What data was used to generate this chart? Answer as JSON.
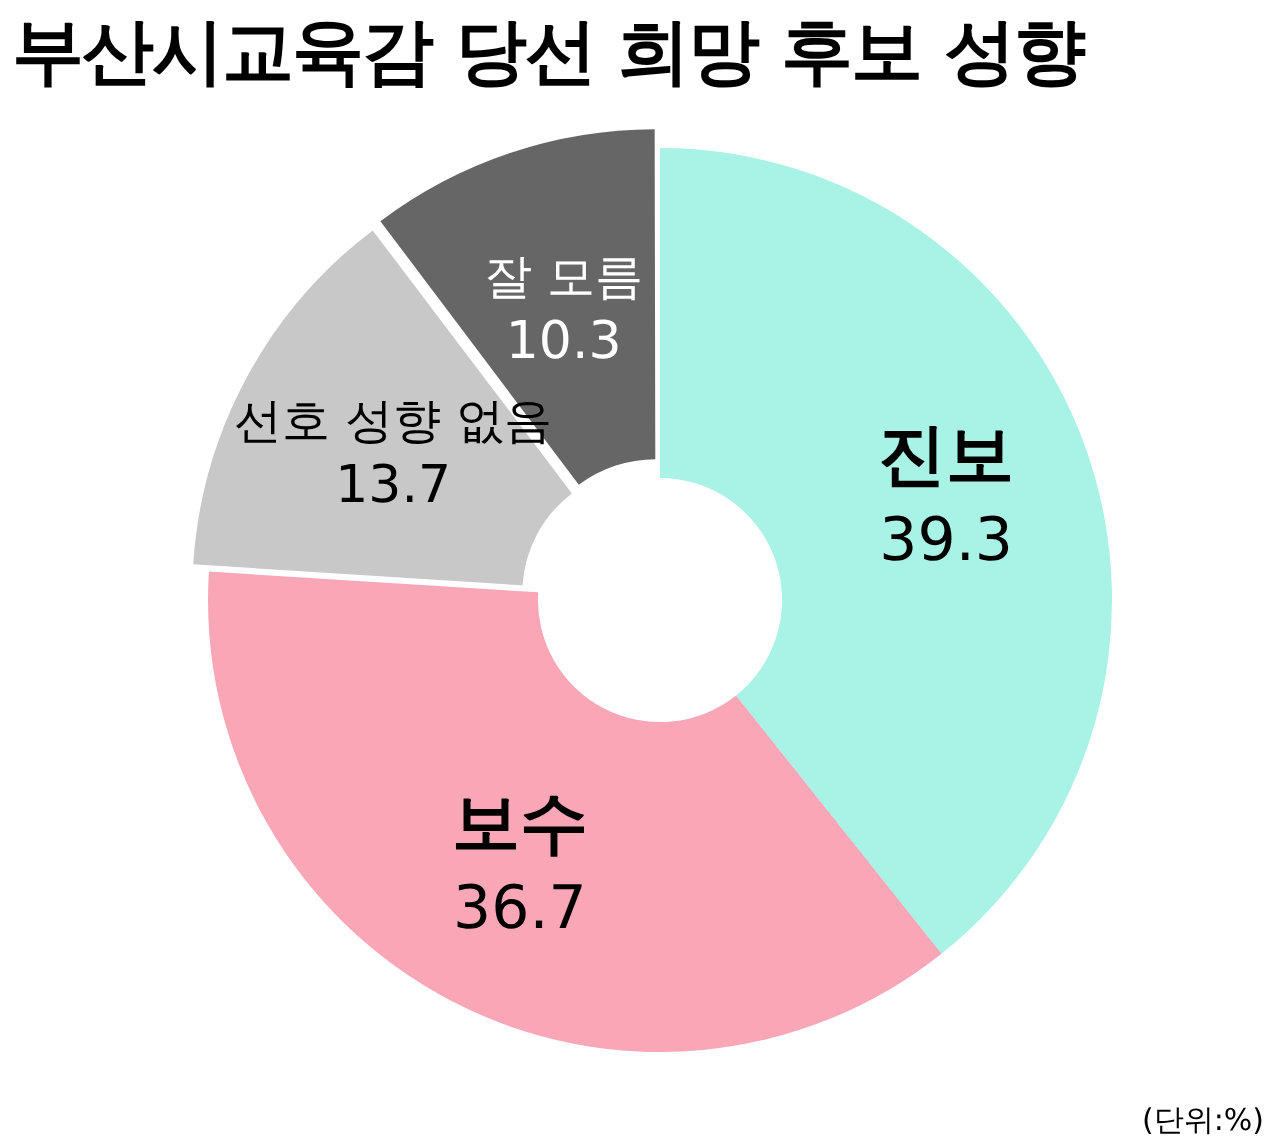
{
  "chart_data": {
    "type": "donut",
    "title": "부산시교육감 당선 희망 후보 성향",
    "categories": [
      "진보",
      "보수",
      "선호 성향 없음",
      "잘 모름"
    ],
    "values": [
      39.3,
      36.7,
      13.7,
      10.3
    ],
    "colors": [
      "#a8f2e6",
      "#f9a7b7",
      "#c8c8c8",
      "#666666"
    ],
    "data_labels": true,
    "legend": false,
    "annotations": [
      "(단위:%)"
    ]
  }
}
